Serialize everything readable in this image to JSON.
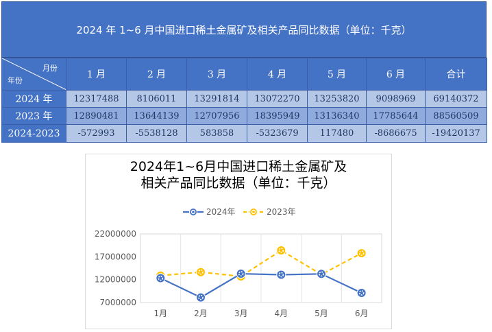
{
  "table": {
    "title": "2024 年 1~6 月中国进口稀土金属矿及相关产品同比数据（单位：千克）",
    "corner_month": "月份",
    "corner_year": "年份",
    "columns": [
      "1 月",
      "2 月",
      "3 月",
      "4 月",
      "5 月",
      "6 月",
      "合计"
    ],
    "rows": [
      {
        "label": "2024 年",
        "values": [
          "12317488",
          "8106011",
          "13291814",
          "13072270",
          "13253820",
          "9098969",
          "69140372"
        ]
      },
      {
        "label": "2023 年",
        "values": [
          "12890481",
          "13644139",
          "12707956",
          "18395949",
          "13136340",
          "17785644",
          "88560509"
        ]
      },
      {
        "label": "2024-2023",
        "values": [
          "-572993",
          "-5538128",
          "583858",
          "-5323679",
          "117480",
          "-8686675",
          "-19420137"
        ]
      }
    ]
  },
  "chart_data": {
    "type": "line",
    "title": "2024年1~6月中国进口稀土金属矿及\n相关产品同比数据（单位：千克）",
    "categories": [
      "1月",
      "2月",
      "3月",
      "4月",
      "5月",
      "6月"
    ],
    "series": [
      {
        "name": "2024年",
        "color": "#4472c4",
        "dash": "solid",
        "values": [
          12317488,
          8106011,
          13291814,
          13072270,
          13253820,
          9098969
        ]
      },
      {
        "name": "2023年",
        "color": "#ffc000",
        "dash": "dashed",
        "values": [
          12890481,
          13644139,
          12707956,
          18395949,
          13136340,
          17785644
        ]
      }
    ],
    "y_ticks": [
      "7000000",
      "12000000",
      "17000000",
      "22000000"
    ],
    "ylim": [
      7000000,
      22000000
    ],
    "legend_position": "top",
    "grid": "vertical"
  }
}
